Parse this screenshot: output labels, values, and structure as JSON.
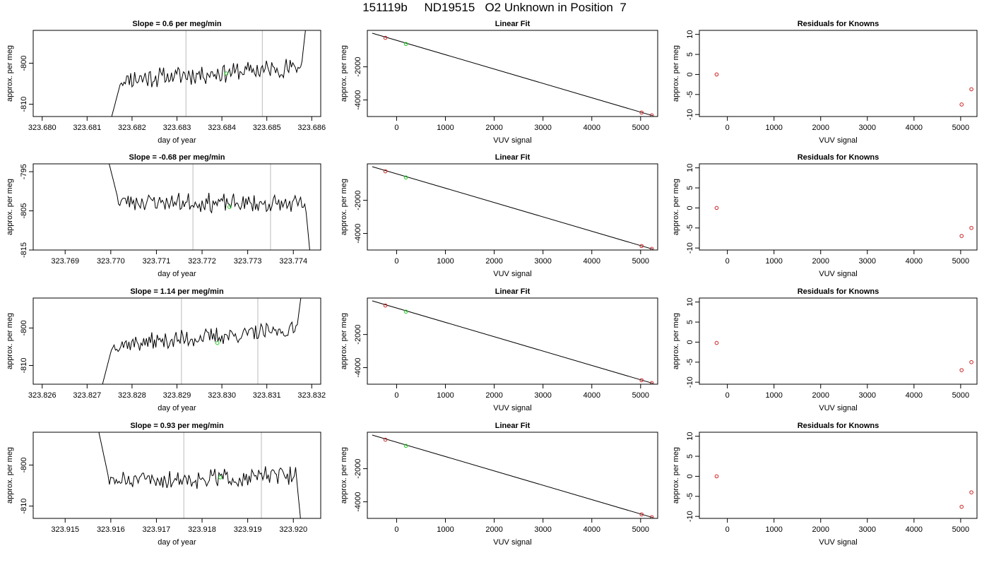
{
  "page": {
    "title": "151119b     ND19515   O2 Unknown in Position  7"
  },
  "colors": {
    "known": "#cc2222",
    "unknown": "#22cc22",
    "line": "#000000",
    "marker": "#bbbbbb"
  },
  "chart_data": [
    {
      "type": "line",
      "title": "Slope =  0.6  per meg/min",
      "xlabel": "day of year",
      "ylabel": "approx. per meg",
      "xlim": [
        323.6798,
        323.6862
      ],
      "ylim": [
        -813,
        -792
      ],
      "xticks": [
        {
          "v": 323.68,
          "label": "323.680"
        },
        {
          "v": 323.681,
          "label": "323.681"
        },
        {
          "v": 323.682,
          "label": "323.682"
        },
        {
          "v": 323.683,
          "label": "323.683"
        },
        {
          "v": 323.684,
          "label": "323.684"
        },
        {
          "v": 323.685,
          "label": "323.685"
        },
        {
          "v": 323.686,
          "label": "323.686"
        }
      ],
      "yticks": [
        {
          "v": -800,
          "label": "-800"
        },
        {
          "v": -810,
          "label": "-810"
        }
      ],
      "vlines": [
        323.6832,
        323.6849
      ],
      "series_start": 323.6815,
      "series_end": 323.6859,
      "start_level": -815,
      "mid_level": -804.0,
      "end_level": -801.0,
      "jump_out": -788,
      "noise": 2.0,
      "seed": 11,
      "point": {
        "x": 323.6841,
        "y": -802.5
      }
    },
    {
      "type": "scatter",
      "title": "Linear Fit",
      "xlabel": "VUV signal",
      "ylabel": "approx. per meg",
      "xlim": [
        -600,
        5350
      ],
      "ylim": [
        -5000,
        200
      ],
      "xticks": [
        {
          "v": 0,
          "label": "0"
        },
        {
          "v": 1000,
          "label": "1000"
        },
        {
          "v": 2000,
          "label": "2000"
        },
        {
          "v": 3000,
          "label": "3000"
        },
        {
          "v": 4000,
          "label": "4000"
        },
        {
          "v": 5000,
          "label": "5000"
        }
      ],
      "yticks": [
        {
          "v": -2000,
          "label": "-2000"
        },
        {
          "v": -4000,
          "label": "-4000"
        }
      ],
      "fit_line": [
        [
          -500,
          30
        ],
        [
          5250,
          -4950
        ]
      ],
      "points": [
        {
          "x": -230,
          "y": -250,
          "kind": "known"
        },
        {
          "x": 5020,
          "y": -4760,
          "kind": "known"
        },
        {
          "x": 5230,
          "y": -4930,
          "kind": "known"
        },
        {
          "x": 190,
          "y": -620,
          "kind": "unknown"
        }
      ]
    },
    {
      "type": "scatter",
      "title": "Residuals for Knowns",
      "xlabel": "VUV signal",
      "ylabel": "approx. per meg",
      "xlim": [
        -600,
        5350
      ],
      "ylim": [
        -10.5,
        11
      ],
      "xticks": [
        {
          "v": 0,
          "label": "0"
        },
        {
          "v": 1000,
          "label": "1000"
        },
        {
          "v": 2000,
          "label": "2000"
        },
        {
          "v": 3000,
          "label": "3000"
        },
        {
          "v": 4000,
          "label": "4000"
        },
        {
          "v": 5000,
          "label": "5000"
        }
      ],
      "yticks": [
        {
          "v": 10,
          "label": "10"
        },
        {
          "v": 5,
          "label": "5"
        },
        {
          "v": 0,
          "label": "0"
        },
        {
          "v": -5,
          "label": "-5"
        },
        {
          "v": -10,
          "label": "-10"
        }
      ],
      "points": [
        {
          "x": -230,
          "y": 0,
          "kind": "known"
        },
        {
          "x": 5020,
          "y": -7.5,
          "kind": "known"
        },
        {
          "x": 5230,
          "y": -3.7,
          "kind": "known"
        }
      ]
    },
    {
      "type": "line",
      "title": "Slope =  -0.68  per meg/min",
      "xlabel": "day of year",
      "ylabel": "approx. per meg",
      "xlim": [
        323.7683,
        323.7746
      ],
      "ylim": [
        -815,
        -793
      ],
      "xticks": [
        {
          "v": 323.769,
          "label": "323.769"
        },
        {
          "v": 323.77,
          "label": "323.770"
        },
        {
          "v": 323.771,
          "label": "323.771"
        },
        {
          "v": 323.772,
          "label": "323.772"
        },
        {
          "v": 323.773,
          "label": "323.773"
        },
        {
          "v": 323.774,
          "label": "323.774"
        }
      ],
      "yticks": [
        {
          "v": -795,
          "label": "-795"
        },
        {
          "v": -805,
          "label": "-805"
        },
        {
          "v": -815,
          "label": "-815"
        }
      ],
      "vlines": [
        323.7718,
        323.7735
      ],
      "series_start": 323.7699,
      "series_end": 323.7744,
      "start_level": -790,
      "mid_level": -802.5,
      "end_level": -803.5,
      "jump_out": -820,
      "noise": 2.0,
      "seed": 23,
      "point": {
        "x": 323.7726,
        "y": -804
      }
    },
    {
      "type": "scatter",
      "title": "Linear Fit",
      "xlabel": "VUV signal",
      "ylabel": "approx. per meg",
      "xlim": [
        -600,
        5350
      ],
      "ylim": [
        -5000,
        200
      ],
      "xticks": [
        {
          "v": 0,
          "label": "0"
        },
        {
          "v": 1000,
          "label": "1000"
        },
        {
          "v": 2000,
          "label": "2000"
        },
        {
          "v": 3000,
          "label": "3000"
        },
        {
          "v": 4000,
          "label": "4000"
        },
        {
          "v": 5000,
          "label": "5000"
        }
      ],
      "yticks": [
        {
          "v": -2000,
          "label": "-2000"
        },
        {
          "v": -4000,
          "label": "-4000"
        }
      ],
      "fit_line": [
        [
          -500,
          30
        ],
        [
          5250,
          -4950
        ]
      ],
      "points": [
        {
          "x": -230,
          "y": -250,
          "kind": "known"
        },
        {
          "x": 5020,
          "y": -4760,
          "kind": "known"
        },
        {
          "x": 5230,
          "y": -4930,
          "kind": "known"
        },
        {
          "x": 190,
          "y": -620,
          "kind": "unknown"
        }
      ]
    },
    {
      "type": "scatter",
      "title": "Residuals for Knowns",
      "xlabel": "VUV signal",
      "ylabel": "approx. per meg",
      "xlim": [
        -600,
        5350
      ],
      "ylim": [
        -10.5,
        11
      ],
      "xticks": [
        {
          "v": 0,
          "label": "0"
        },
        {
          "v": 1000,
          "label": "1000"
        },
        {
          "v": 2000,
          "label": "2000"
        },
        {
          "v": 3000,
          "label": "3000"
        },
        {
          "v": 4000,
          "label": "4000"
        },
        {
          "v": 5000,
          "label": "5000"
        }
      ],
      "yticks": [
        {
          "v": 10,
          "label": "10"
        },
        {
          "v": 5,
          "label": "5"
        },
        {
          "v": 0,
          "label": "0"
        },
        {
          "v": -5,
          "label": "-5"
        },
        {
          "v": -10,
          "label": "-10"
        }
      ],
      "points": [
        {
          "x": -230,
          "y": 0,
          "kind": "known"
        },
        {
          "x": 5020,
          "y": -7.0,
          "kind": "known"
        },
        {
          "x": 5230,
          "y": -5.0,
          "kind": "known"
        }
      ]
    },
    {
      "type": "line",
      "title": "Slope =  1.14  per meg/min",
      "xlabel": "day of year",
      "ylabel": "approx. per meg",
      "xlim": [
        323.8258,
        323.8322
      ],
      "ylim": [
        -815,
        -792
      ],
      "xticks": [
        {
          "v": 323.826,
          "label": "323.826"
        },
        {
          "v": 323.827,
          "label": "323.827"
        },
        {
          "v": 323.828,
          "label": "323.828"
        },
        {
          "v": 323.829,
          "label": "323.829"
        },
        {
          "v": 323.83,
          "label": "323.830"
        },
        {
          "v": 323.831,
          "label": "323.831"
        },
        {
          "v": 323.832,
          "label": "323.832"
        }
      ],
      "yticks": [
        {
          "v": -800,
          "label": "-800"
        },
        {
          "v": -810,
          "label": "-810"
        }
      ],
      "vlines": [
        323.8291,
        323.8308
      ],
      "series_start": 323.8273,
      "series_end": 323.8318,
      "start_level": -817,
      "mid_level": -804.5,
      "end_level": -800.5,
      "jump_out": -788,
      "noise": 2.0,
      "seed": 37,
      "point": {
        "x": 323.8299,
        "y": -804
      }
    },
    {
      "type": "scatter",
      "title": "Linear Fit",
      "xlabel": "VUV signal",
      "ylabel": "approx. per meg",
      "xlim": [
        -600,
        5350
      ],
      "ylim": [
        -5000,
        200
      ],
      "xticks": [
        {
          "v": 0,
          "label": "0"
        },
        {
          "v": 1000,
          "label": "1000"
        },
        {
          "v": 2000,
          "label": "2000"
        },
        {
          "v": 3000,
          "label": "3000"
        },
        {
          "v": 4000,
          "label": "4000"
        },
        {
          "v": 5000,
          "label": "5000"
        }
      ],
      "yticks": [
        {
          "v": -2000,
          "label": "-2000"
        },
        {
          "v": -4000,
          "label": "-4000"
        }
      ],
      "fit_line": [
        [
          -500,
          30
        ],
        [
          5250,
          -4950
        ]
      ],
      "points": [
        {
          "x": -230,
          "y": -250,
          "kind": "known"
        },
        {
          "x": 5020,
          "y": -4760,
          "kind": "known"
        },
        {
          "x": 5230,
          "y": -4930,
          "kind": "known"
        },
        {
          "x": 190,
          "y": -620,
          "kind": "unknown"
        }
      ]
    },
    {
      "type": "scatter",
      "title": "Residuals for Knowns",
      "xlabel": "VUV signal",
      "ylabel": "approx. per meg",
      "xlim": [
        -600,
        5350
      ],
      "ylim": [
        -10.5,
        11
      ],
      "xticks": [
        {
          "v": 0,
          "label": "0"
        },
        {
          "v": 1000,
          "label": "1000"
        },
        {
          "v": 2000,
          "label": "2000"
        },
        {
          "v": 3000,
          "label": "3000"
        },
        {
          "v": 4000,
          "label": "4000"
        },
        {
          "v": 5000,
          "label": "5000"
        }
      ],
      "yticks": [
        {
          "v": 10,
          "label": "10"
        },
        {
          "v": 5,
          "label": "5"
        },
        {
          "v": 0,
          "label": "0"
        },
        {
          "v": -5,
          "label": "-5"
        },
        {
          "v": -10,
          "label": "-10"
        }
      ],
      "points": [
        {
          "x": -230,
          "y": -0.2,
          "kind": "known"
        },
        {
          "x": 5020,
          "y": -7.0,
          "kind": "known"
        },
        {
          "x": 5230,
          "y": -5.0,
          "kind": "known"
        }
      ]
    },
    {
      "type": "line",
      "title": "Slope =  0.93  per meg/min",
      "xlabel": "day of year",
      "ylabel": "approx. per meg",
      "xlim": [
        323.9143,
        323.9206
      ],
      "ylim": [
        -813,
        -792
      ],
      "xticks": [
        {
          "v": 323.915,
          "label": "323.915"
        },
        {
          "v": 323.916,
          "label": "323.916"
        },
        {
          "v": 323.917,
          "label": "323.917"
        },
        {
          "v": 323.918,
          "label": "323.918"
        },
        {
          "v": 323.919,
          "label": "323.919"
        },
        {
          "v": 323.92,
          "label": "323.920"
        }
      ],
      "yticks": [
        {
          "v": -800,
          "label": "-800"
        },
        {
          "v": -810,
          "label": "-810"
        }
      ],
      "vlines": [
        323.9176,
        323.9193
      ],
      "series_start": 323.9157,
      "series_end": 323.9202,
      "start_level": -790,
      "mid_level": -804.0,
      "end_level": -802.5,
      "jump_out": -818,
      "noise": 2.0,
      "seed": 51,
      "point": {
        "x": 323.9184,
        "y": -803
      }
    },
    {
      "type": "scatter",
      "title": "Linear Fit",
      "xlabel": "VUV signal",
      "ylabel": "approx. per meg",
      "xlim": [
        -600,
        5350
      ],
      "ylim": [
        -5000,
        200
      ],
      "xticks": [
        {
          "v": 0,
          "label": "0"
        },
        {
          "v": 1000,
          "label": "1000"
        },
        {
          "v": 2000,
          "label": "2000"
        },
        {
          "v": 3000,
          "label": "3000"
        },
        {
          "v": 4000,
          "label": "4000"
        },
        {
          "v": 5000,
          "label": "5000"
        }
      ],
      "yticks": [
        {
          "v": -2000,
          "label": "-2000"
        },
        {
          "v": -4000,
          "label": "-4000"
        }
      ],
      "fit_line": [
        [
          -500,
          30
        ],
        [
          5250,
          -4950
        ]
      ],
      "points": [
        {
          "x": -230,
          "y": -250,
          "kind": "known"
        },
        {
          "x": 5020,
          "y": -4760,
          "kind": "known"
        },
        {
          "x": 5230,
          "y": -4930,
          "kind": "known"
        },
        {
          "x": 190,
          "y": -620,
          "kind": "unknown"
        }
      ]
    },
    {
      "type": "scatter",
      "title": "Residuals for Knowns",
      "xlabel": "VUV signal",
      "ylabel": "approx. per meg",
      "xlim": [
        -600,
        5350
      ],
      "ylim": [
        -10.5,
        11
      ],
      "xticks": [
        {
          "v": 0,
          "label": "0"
        },
        {
          "v": 1000,
          "label": "1000"
        },
        {
          "v": 2000,
          "label": "2000"
        },
        {
          "v": 3000,
          "label": "3000"
        },
        {
          "v": 4000,
          "label": "4000"
        },
        {
          "v": 5000,
          "label": "5000"
        }
      ],
      "yticks": [
        {
          "v": 10,
          "label": "10"
        },
        {
          "v": 5,
          "label": "5"
        },
        {
          "v": 0,
          "label": "0"
        },
        {
          "v": -5,
          "label": "-5"
        },
        {
          "v": -10,
          "label": "-10"
        }
      ],
      "points": [
        {
          "x": -230,
          "y": 0,
          "kind": "known"
        },
        {
          "x": 5020,
          "y": -7.6,
          "kind": "known"
        },
        {
          "x": 5230,
          "y": -4.0,
          "kind": "known"
        }
      ]
    }
  ]
}
